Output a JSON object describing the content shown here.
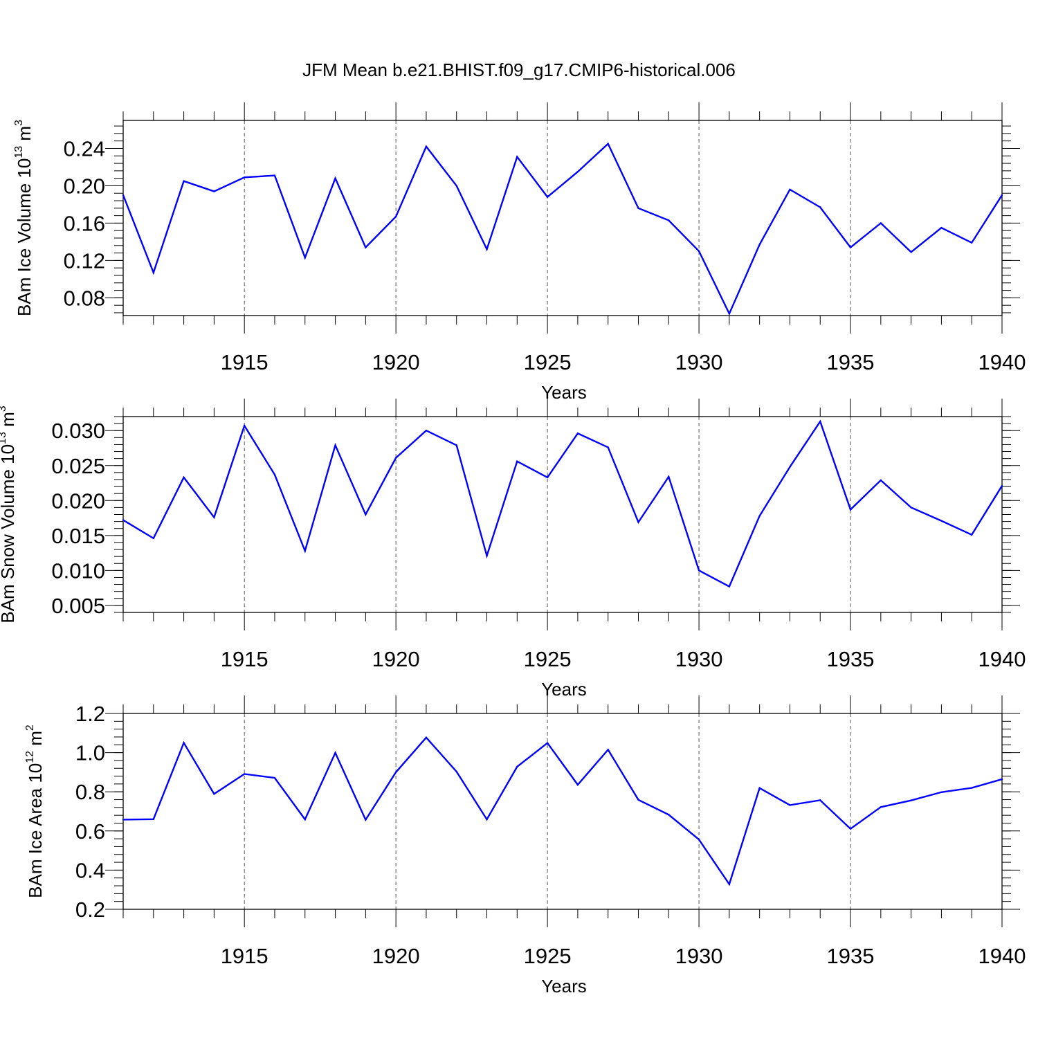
{
  "title": "JFM Mean b.e21.BHIST.f09_g17.CMIP6-historical.006",
  "colors": {
    "line": "#0000ff",
    "axis": "#000000",
    "grid": "#555555",
    "background": "#ffffff"
  },
  "chart_data": [
    {
      "type": "line",
      "ylabel": {
        "main": "BAm Ice Volume 10",
        "exp": "13",
        "unit": " m",
        "unit_exp": "3"
      },
      "xlabel": "Years",
      "xlim": [
        1911,
        1940
      ],
      "ylim": [
        0.061,
        0.27
      ],
      "x_major_ticks": [
        1915,
        1920,
        1925,
        1930,
        1935,
        1940
      ],
      "x_tick_labels": [
        "1915",
        "1920",
        "1925",
        "1930",
        "1935",
        "1940"
      ],
      "y_major_ticks": [
        0.08,
        0.12,
        0.16,
        0.2,
        0.24
      ],
      "y_tick_labels": [
        "0.08",
        "0.12",
        "0.16",
        "0.20",
        "0.24"
      ],
      "y_minor_step": 0.008,
      "grid": "vertical dashed at major x ticks",
      "x": [
        1911,
        1912,
        1913,
        1914,
        1915,
        1916,
        1917,
        1918,
        1919,
        1920,
        1921,
        1922,
        1923,
        1924,
        1925,
        1926,
        1927,
        1928,
        1929,
        1930,
        1931,
        1932,
        1933,
        1934,
        1935,
        1936,
        1937,
        1938,
        1939,
        1940
      ],
      "values": [
        0.19,
        0.107,
        0.205,
        0.194,
        0.209,
        0.211,
        0.123,
        0.208,
        0.134,
        0.167,
        0.242,
        0.2,
        0.132,
        0.231,
        0.188,
        0.215,
        0.245,
        0.176,
        0.163,
        0.13,
        0.063,
        0.137,
        0.196,
        0.177,
        0.134,
        0.16,
        0.129,
        0.155,
        0.139,
        0.19
      ]
    },
    {
      "type": "line",
      "ylabel": {
        "main": "BAm Snow Volume 10",
        "exp": "13",
        "unit": " m",
        "unit_exp": "3"
      },
      "xlabel": "Years",
      "xlim": [
        1911,
        1940
      ],
      "ylim": [
        0.004,
        0.032
      ],
      "x_major_ticks": [
        1915,
        1920,
        1925,
        1930,
        1935,
        1940
      ],
      "x_tick_labels": [
        "1915",
        "1920",
        "1925",
        "1930",
        "1935",
        "1940"
      ],
      "y_major_ticks": [
        0.005,
        0.01,
        0.015,
        0.02,
        0.025,
        0.03
      ],
      "y_tick_labels": [
        "0.005",
        "0.010",
        "0.015",
        "0.020",
        "0.025",
        "0.030"
      ],
      "y_minor_step": 0.001,
      "grid": "vertical dashed at major x ticks",
      "x": [
        1911,
        1912,
        1913,
        1914,
        1915,
        1916,
        1917,
        1918,
        1919,
        1920,
        1921,
        1922,
        1923,
        1924,
        1925,
        1926,
        1927,
        1928,
        1929,
        1930,
        1931,
        1932,
        1933,
        1934,
        1935,
        1936,
        1937,
        1938,
        1939,
        1940
      ],
      "values": [
        0.0172,
        0.0146,
        0.0233,
        0.0176,
        0.0307,
        0.0237,
        0.0128,
        0.0279,
        0.018,
        0.0261,
        0.03,
        0.0279,
        0.0121,
        0.0256,
        0.0233,
        0.0296,
        0.0276,
        0.0169,
        0.0234,
        0.01,
        0.0077,
        0.0178,
        0.0248,
        0.0313,
        0.0187,
        0.0229,
        0.019,
        0.0171,
        0.0151,
        0.0221
      ]
    },
    {
      "type": "line",
      "ylabel": {
        "main": "BAm Ice Area 10",
        "exp": "12",
        "unit": " m",
        "unit_exp": "2"
      },
      "xlabel": "Years",
      "xlim": [
        1911,
        1940
      ],
      "ylim": [
        0.2,
        1.2
      ],
      "x_major_ticks": [
        1915,
        1920,
        1925,
        1930,
        1935,
        1940
      ],
      "x_tick_labels": [
        "1915",
        "1920",
        "1925",
        "1930",
        "1935",
        "1940"
      ],
      "y_major_ticks": [
        0.2,
        0.4,
        0.6,
        0.8,
        1.0,
        1.2
      ],
      "y_tick_labels": [
        "0.2",
        "0.4",
        "0.6",
        "0.8",
        "1.0",
        "1.2"
      ],
      "y_minor_step": 0.04,
      "grid": "vertical dashed at major x ticks",
      "x": [
        1911,
        1912,
        1913,
        1914,
        1915,
        1916,
        1917,
        1918,
        1919,
        1920,
        1921,
        1922,
        1923,
        1924,
        1925,
        1926,
        1927,
        1928,
        1929,
        1930,
        1931,
        1932,
        1933,
        1934,
        1935,
        1936,
        1937,
        1938,
        1939,
        1940
      ],
      "values": [
        0.658,
        0.66,
        1.05,
        0.789,
        0.891,
        0.871,
        0.659,
        0.999,
        0.657,
        0.9,
        1.077,
        0.903,
        0.659,
        0.928,
        1.049,
        0.836,
        1.015,
        0.759,
        0.683,
        0.556,
        0.328,
        0.819,
        0.732,
        0.757,
        0.611,
        0.722,
        0.756,
        0.798,
        0.82,
        0.864
      ]
    }
  ]
}
